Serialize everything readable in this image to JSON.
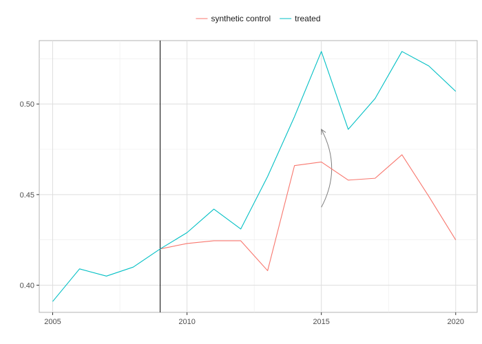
{
  "chart_data": {
    "type": "line",
    "title": "",
    "xlabel": "",
    "ylabel": "",
    "x": [
      2005,
      2006,
      2007,
      2008,
      2009,
      2010,
      2011,
      2012,
      2013,
      2014,
      2015,
      2016,
      2017,
      2018,
      2019,
      2020
    ],
    "xlim": [
      2004.5,
      2020.8
    ],
    "ylim": [
      0.385,
      0.535
    ],
    "x_ticks": [
      2005,
      2010,
      2015,
      2020
    ],
    "y_ticks": [
      0.4,
      0.45,
      0.5
    ],
    "x_tick_labels": [
      "2005",
      "2010",
      "2015",
      "2020"
    ],
    "y_tick_labels": [
      "0.40",
      "0.45",
      "0.50"
    ],
    "grid": true,
    "legend_position": "top",
    "series": [
      {
        "name": "synthetic control",
        "color": "#F8766D",
        "values": [
          null,
          null,
          null,
          null,
          0.42,
          0.423,
          0.4245,
          0.4245,
          0.408,
          0.466,
          0.468,
          0.458,
          0.459,
          0.472,
          0.449,
          0.425
        ]
      },
      {
        "name": "treated",
        "color": "#00BFC4",
        "values": [
          0.391,
          0.409,
          0.405,
          0.41,
          0.42,
          0.429,
          0.442,
          0.431,
          0.46,
          0.493,
          0.529,
          0.486,
          0.503,
          0.529,
          0.521,
          0.507
        ]
      }
    ],
    "annotations": [
      {
        "type": "vline",
        "x": 2009,
        "color": "#000000"
      },
      {
        "type": "curved-arrow",
        "from": [
          2015,
          0.443
        ],
        "to": [
          2015,
          0.486
        ],
        "color": "#7f7f7f"
      }
    ]
  }
}
